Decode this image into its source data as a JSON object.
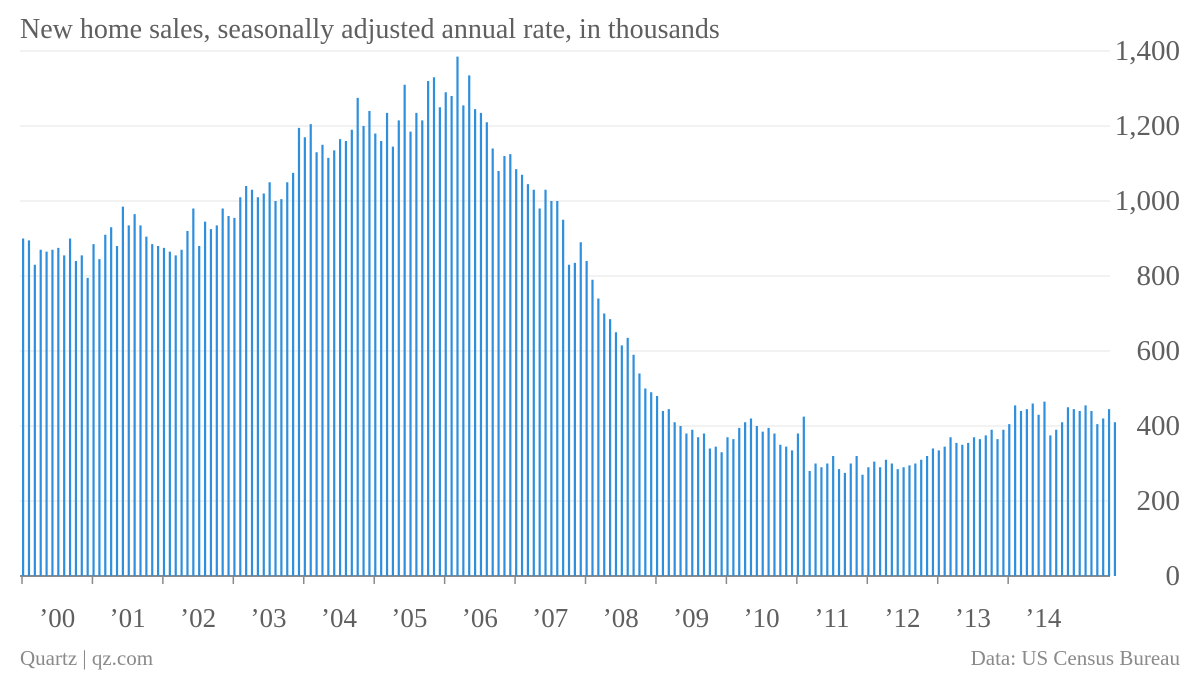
{
  "chart_data": {
    "type": "bar",
    "title": "New home sales, seasonally adjusted annual rate, in thousands",
    "xlabel": "",
    "ylabel": "",
    "ylim": [
      0,
      1400
    ],
    "y_ticks": [
      0,
      200,
      400,
      600,
      800,
      1000,
      1200,
      1400
    ],
    "y_tick_labels": [
      "0",
      "200",
      "400",
      "600",
      "800",
      "1,000",
      "1,200",
      "1,400"
    ],
    "y_axis_position": "right",
    "grid": true,
    "x_tick_labels": [
      "’00",
      "’01",
      "’02",
      "’03",
      "’04",
      "’05",
      "’06",
      "’07",
      "’08",
      "’09",
      "’10",
      "’11",
      "’12",
      "’13",
      "’14"
    ],
    "start": "2000-01",
    "frequency": "monthly",
    "bar_color": "#2f8fdc",
    "values": [
      900,
      895,
      830,
      870,
      865,
      870,
      875,
      855,
      900,
      840,
      855,
      795,
      885,
      845,
      910,
      930,
      880,
      985,
      935,
      965,
      935,
      905,
      885,
      880,
      875,
      865,
      855,
      870,
      920,
      980,
      880,
      945,
      925,
      935,
      980,
      960,
      955,
      1010,
      1040,
      1030,
      1010,
      1020,
      1050,
      1000,
      1005,
      1050,
      1075,
      1195,
      1170,
      1205,
      1130,
      1150,
      1115,
      1135,
      1165,
      1160,
      1190,
      1275,
      1200,
      1240,
      1180,
      1160,
      1235,
      1145,
      1215,
      1310,
      1185,
      1235,
      1215,
      1320,
      1330,
      1250,
      1290,
      1280,
      1385,
      1255,
      1335,
      1245,
      1235,
      1210,
      1140,
      1080,
      1120,
      1125,
      1085,
      1070,
      1045,
      1030,
      980,
      1030,
      1000,
      1000,
      950,
      830,
      835,
      890,
      840,
      790,
      740,
      700,
      685,
      650,
      615,
      635,
      590,
      540,
      500,
      490,
      480,
      440,
      445,
      410,
      400,
      380,
      390,
      370,
      380,
      340,
      345,
      330,
      370,
      365,
      395,
      410,
      420,
      400,
      385,
      395,
      380,
      350,
      345,
      335,
      380,
      425,
      280,
      300,
      290,
      300,
      320,
      285,
      275,
      300,
      320,
      270,
      290,
      305,
      290,
      310,
      300,
      285,
      290,
      295,
      300,
      310,
      320,
      340,
      335,
      345,
      370,
      355,
      350,
      355,
      370,
      365,
      375,
      390,
      365,
      390,
      405,
      455,
      440,
      445,
      460,
      430,
      465,
      375,
      390,
      410,
      450,
      445,
      440,
      455,
      440,
      405,
      420,
      445,
      410
    ]
  },
  "footer": {
    "source_left": "Quartz | qz.com",
    "source_right": "Data: US Census Bureau"
  }
}
